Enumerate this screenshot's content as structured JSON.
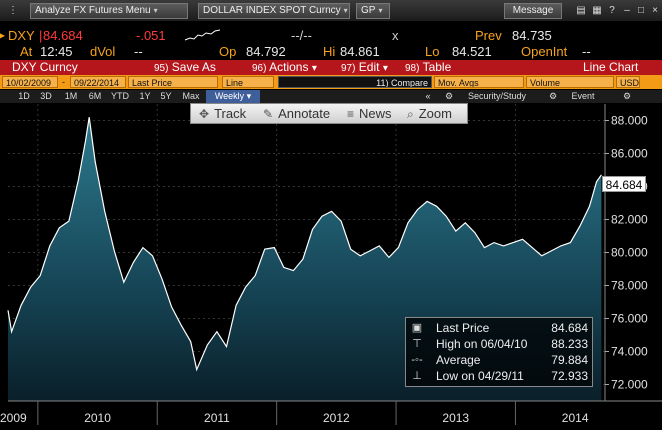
{
  "menu": {
    "analyze_label": "Analyze FX Futures Menu",
    "security_label": "DOLLAR INDEX SPOT Curncy",
    "gp_label": "GP",
    "message_label": "Message"
  },
  "quote": {
    "ticker": "DXY",
    "last": "84.684",
    "change": "-.051",
    "bid_ask": "--/--",
    "x_mark": "x",
    "prev_label": "Prev",
    "prev": "84.735",
    "time_label": "At",
    "time": "12:45",
    "dvol_label": "dVol",
    "dvol": "--",
    "open_label": "Op",
    "open": "84.792",
    "high_label": "Hi",
    "high": "84.861",
    "low_label": "Lo",
    "low": "84.521",
    "oi_label": "OpenInt",
    "oi": "--"
  },
  "functions": {
    "security": "DXY Curncy",
    "save_key": "95)",
    "save": "Save As",
    "actions_key": "96)",
    "actions": "Actions",
    "edit_key": "97)",
    "edit": "Edit",
    "table_key": "98)",
    "table": "Table",
    "chart_type": "Line Chart"
  },
  "fields": {
    "start_date": "10/02/2009",
    "end_date": "09/22/2014",
    "price_field": "Last Price",
    "line": "Line",
    "compare_key": "11)",
    "compare": "Compare",
    "mov_avgs": "Mov. Avgs",
    "volume": "Volume",
    "currency": "USD"
  },
  "periods": {
    "items": [
      "1D",
      "3D",
      "1M",
      "6M",
      "YTD",
      "1Y",
      "5Y",
      "Max"
    ],
    "frequency": "Weekly",
    "security_study": "Security/Study",
    "event": "Event"
  },
  "tools": {
    "track": "Track",
    "annotate": "Annotate",
    "news": "News",
    "zoom": "Zoom"
  },
  "legend": {
    "last_label": "Last Price",
    "last_value": "84.684",
    "high_label": "High on 06/04/10",
    "high_value": "88.233",
    "avg_label": "Average",
    "avg_value": "79.884",
    "low_label": "Low on 04/29/11",
    "low_value": "72.933"
  },
  "colors": {
    "accent_orange": "#f39a16",
    "function_red": "#b4161b",
    "series_fill_top": "#2d7a8f",
    "series_line": "#ffffff"
  },
  "chart_data": {
    "type": "area",
    "series": [
      {
        "name": "Last Price",
        "x": [
          2009.7,
          2009.78,
          2009.86,
          2009.94,
          2010.02,
          2010.1,
          2010.18,
          2010.26,
          2010.34,
          2010.4,
          2010.43,
          2010.48,
          2010.56,
          2010.64,
          2010.72,
          2010.8,
          2010.88,
          2010.96,
          2011.04,
          2011.12,
          2011.2,
          2011.28,
          2011.33,
          2011.42,
          2011.5,
          2011.58,
          2011.66,
          2011.74,
          2011.82,
          2011.9,
          2011.98,
          2012.06,
          2012.14,
          2012.22,
          2012.3,
          2012.38,
          2012.46,
          2012.54,
          2012.62,
          2012.7,
          2012.78,
          2012.86,
          2012.94,
          2013.02,
          2013.1,
          2013.18,
          2013.26,
          2013.34,
          2013.42,
          2013.5,
          2013.58,
          2013.66,
          2013.74,
          2013.82,
          2013.9,
          2013.98,
          2014.06,
          2014.14,
          2014.22,
          2014.3,
          2014.38,
          2014.46,
          2014.54,
          2014.62,
          2014.68,
          2014.72
        ],
        "values": [
          76.5,
          75.2,
          76.8,
          77.9,
          78.6,
          80.4,
          81.5,
          81.9,
          84.4,
          86.8,
          88.2,
          85.5,
          82.5,
          80.1,
          78.2,
          79.4,
          80.3,
          79.8,
          78.4,
          76.7,
          75.6,
          74.6,
          72.9,
          74.4,
          75.2,
          74.3,
          76.8,
          77.9,
          78.6,
          80.2,
          80.3,
          79.1,
          78.9,
          79.6,
          81.4,
          82.2,
          82.5,
          81.9,
          80.2,
          79.8,
          80.1,
          80.4,
          79.7,
          80.3,
          81.8,
          82.6,
          83.1,
          82.8,
          82.2,
          81.3,
          81.8,
          81.2,
          80.3,
          80.6,
          80.4,
          80.6,
          80.8,
          80.3,
          79.8,
          80.1,
          80.4,
          80.6,
          81.6,
          82.8,
          84.3,
          84.7
        ]
      }
    ],
    "x_ticks": [
      "2009",
      "2010",
      "2011",
      "2012",
      "2013",
      "2014"
    ],
    "y_ticks": [
      "72.000",
      "74.000",
      "76.000",
      "78.000",
      "80.000",
      "82.000",
      "84.000",
      "86.000",
      "88.000"
    ],
    "ylim": [
      71,
      89
    ],
    "xlim": [
      2009.75,
      2014.75
    ],
    "last_value_label": "84.684",
    "grid": true
  }
}
